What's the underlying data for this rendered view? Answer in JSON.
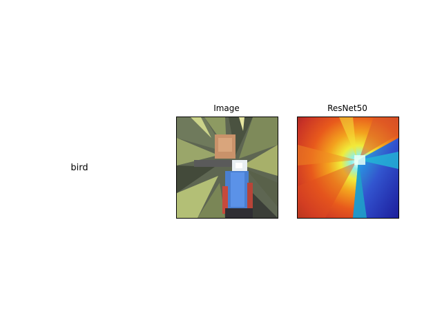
{
  "row_label": "bird",
  "panels": [
    {
      "title": "Image"
    },
    {
      "title": "ResNet50"
    }
  ]
}
